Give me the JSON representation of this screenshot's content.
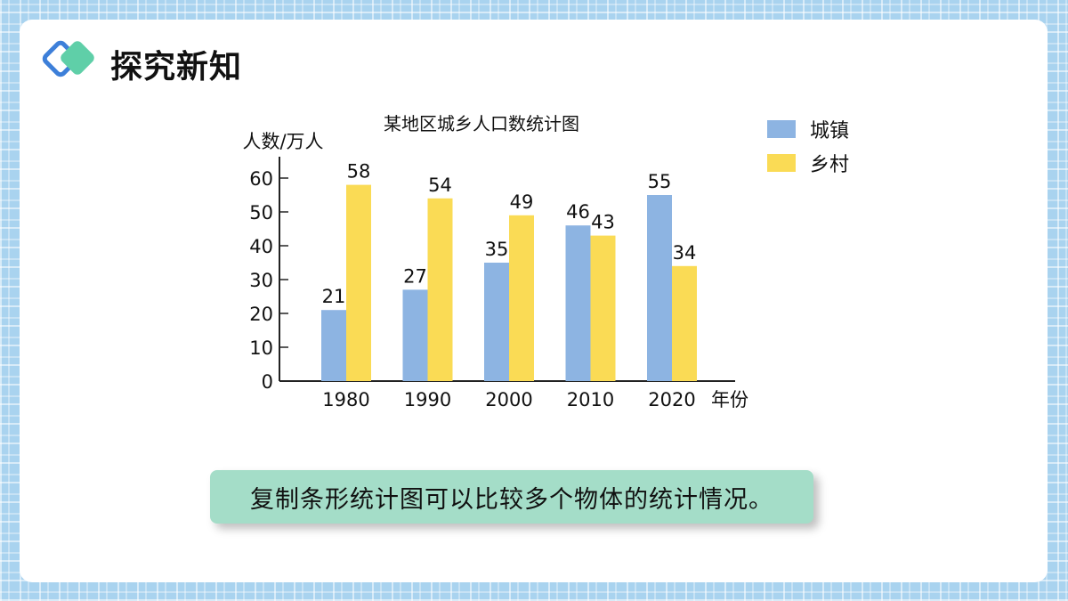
{
  "header": {
    "title": "探究新知"
  },
  "chart_data": {
    "type": "bar",
    "title": "某地区城乡人口数统计图",
    "ylabel": "人数/万人",
    "xlabel": "年份",
    "categories": [
      "1980",
      "1990",
      "2000",
      "2010",
      "2020"
    ],
    "series": [
      {
        "name": "城镇",
        "values": [
          21,
          27,
          35,
          46,
          55
        ],
        "color": "#8db4e2"
      },
      {
        "name": "乡村",
        "values": [
          58,
          54,
          49,
          43,
          34
        ],
        "color": "#fadb55"
      }
    ],
    "yticks": [
      0,
      10,
      20,
      30,
      40,
      50,
      60
    ],
    "ylim": [
      0,
      66
    ],
    "grid": false,
    "legend": "top-right"
  },
  "caption": {
    "text": "复制条形统计图可以比较多个物体的统计情况。"
  },
  "colors": {
    "accent_teal": "#5fcfa8",
    "accent_blue": "#3d7fd9",
    "caption_bg": "#a4ddc8"
  }
}
